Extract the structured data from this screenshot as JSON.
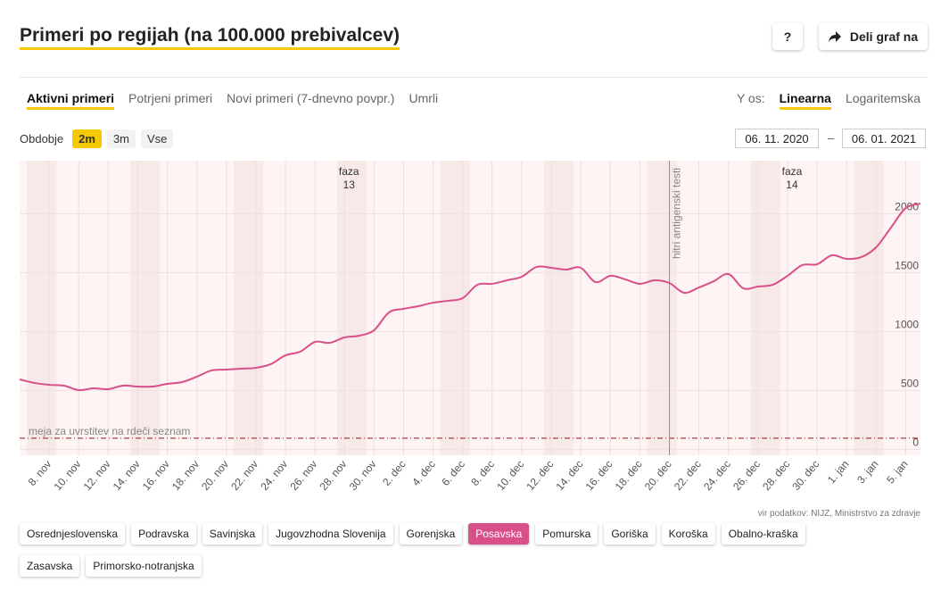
{
  "header": {
    "title": "Primeri po regijah (na 100.000 prebivalcev)",
    "help": "?",
    "share": "Deli graf na"
  },
  "tabs": {
    "items": [
      "Aktivni primeri",
      "Potrjeni primeri",
      "Novi primeri (7-dnevno povpr.)",
      "Umrli"
    ],
    "active": 0
  },
  "y_axis_toggle": {
    "label": "Y os:",
    "options": [
      "Linearna",
      "Logaritemska"
    ],
    "active": 0
  },
  "period": {
    "label": "Obdobje",
    "options": [
      "2m",
      "3m",
      "Vse"
    ],
    "active": 0,
    "from": "06. 11. 2020",
    "separator": "–",
    "to": "06. 01. 2021"
  },
  "chart_data": {
    "type": "line",
    "color": "#d94f8a",
    "categories": [
      null,
      null,
      "8. nov",
      null,
      "10. nov",
      null,
      "12. nov",
      null,
      "14. nov",
      null,
      "16. nov",
      null,
      "18. nov",
      null,
      "20. nov",
      null,
      "22. nov",
      null,
      "24. nov",
      null,
      "26. nov",
      null,
      "28. nov",
      null,
      "30. nov",
      null,
      "2. dec",
      null,
      "4. dec",
      null,
      "6. dec",
      null,
      "8. dec",
      null,
      "10. dec",
      null,
      "12. dec",
      null,
      "14. dec",
      null,
      "16. dec",
      null,
      "18. dec",
      null,
      "20. dec",
      null,
      "22. dec",
      null,
      "24. dec",
      null,
      "26. dec",
      null,
      "28. dec",
      null,
      "30. dec",
      null,
      "1. jan",
      null,
      "3. jan",
      null,
      "5. jan",
      null
    ],
    "values": [
      594,
      564,
      548,
      541,
      503,
      518,
      511,
      541,
      533,
      533,
      556,
      571,
      617,
      670,
      677,
      685,
      692,
      723,
      798,
      829,
      912,
      904,
      950,
      965,
      1011,
      1162,
      1193,
      1215,
      1245,
      1261,
      1283,
      1397,
      1405,
      1435,
      1465,
      1548,
      1541,
      1526,
      1541,
      1420,
      1473,
      1443,
      1405,
      1435,
      1412,
      1329,
      1374,
      1427,
      1488,
      1367,
      1382,
      1397,
      1473,
      1564,
      1571,
      1647,
      1617,
      1632,
      1715,
      1882,
      2048,
      2086
    ],
    "ylim": [
      -50,
      2450
    ],
    "yticks": [
      0,
      500,
      1000,
      1500,
      2000
    ],
    "grid": true,
    "threshold": {
      "label": "meja za uvrstitev na rdeči seznam",
      "value": 95
    },
    "events": [
      {
        "label": "hitri antigenski testi",
        "at": "20. dec"
      }
    ],
    "phases": [
      {
        "label": "faza",
        "number": "13",
        "at": "28. nov"
      },
      {
        "label": "faza",
        "number": "14",
        "at": "28. dec"
      }
    ],
    "source": "vir podatkov: NIJZ, Ministrstvo za zdravje"
  },
  "regions": {
    "items": [
      "Osrednjeslovenska",
      "Podravska",
      "Savinjska",
      "Jugovzhodna Slovenija",
      "Gorenjska",
      "Posavska",
      "Pomurska",
      "Goriška",
      "Koroška",
      "Obalno-kraška",
      "Zasavska",
      "Primorsko-notranjska"
    ],
    "active": 5
  }
}
